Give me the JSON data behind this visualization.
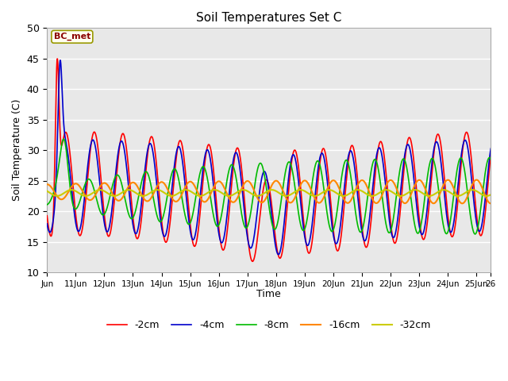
{
  "title": "Soil Temperatures Set C",
  "xlabel": "Time",
  "ylabel": "Soil Temperature (C)",
  "ylim": [
    10,
    50
  ],
  "annotation_text": "BC_met",
  "annotation_color": "#8B0000",
  "annotation_bg": "#FFFFF0",
  "annotation_border": "#999900",
  "bg_color": "#E8E8E8",
  "grid_color": "#FFFFFF",
  "series": {
    "-2cm": {
      "color": "#FF0000",
      "lw": 1.2
    },
    "-4cm": {
      "color": "#0000CC",
      "lw": 1.2
    },
    "-8cm": {
      "color": "#00BB00",
      "lw": 1.2
    },
    "-16cm": {
      "color": "#FF8800",
      "lw": 1.5
    },
    "-32cm": {
      "color": "#CCCC00",
      "lw": 1.5
    }
  },
  "xtick_labels": [
    "Jun",
    "11Jun",
    "12Jun",
    "13Jun",
    "14Jun",
    "15Jun",
    "16Jun",
    "17Jun",
    "18Jun",
    "19Jun",
    "20Jun",
    "21Jun",
    "22Jun",
    "23Jun",
    "24Jun",
    "25Jun",
    "26"
  ],
  "yticks": [
    10,
    15,
    20,
    25,
    30,
    35,
    40,
    45,
    50
  ]
}
